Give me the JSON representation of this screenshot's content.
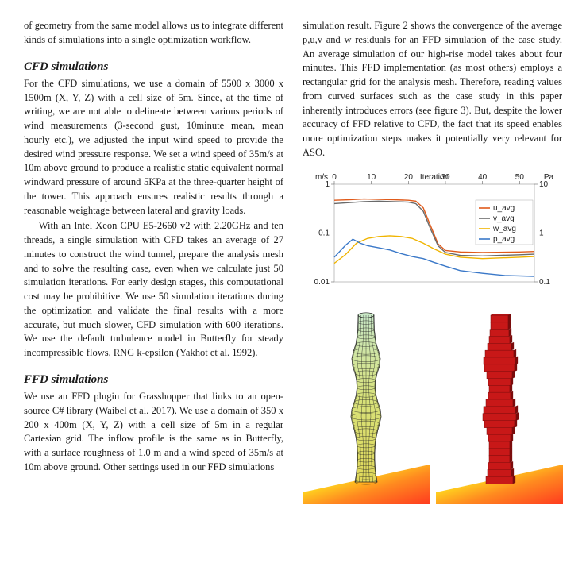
{
  "leftCol": {
    "intro": "of geometry from the same model allows us to integrate different kinds of simulations into a single optimization workflow.",
    "h_cfd": "CFD simulations",
    "cfd_p1": "For the CFD simulations, we use a domain of 5500 x 3000 x 1500m (X, Y, Z) with a cell size of 5m. Since, at the time of writing, we are not able to delineate between various periods of wind measurements (3-second gust, 10minute mean, mean hourly etc.), we adjusted the input wind speed to provide the desired wind pressure response. We set a wind speed of 35m/s at 10m above ground to produce a realistic static equivalent normal windward pressure of around 5KPa at the three-quarter height of the tower.  This approach ensures realistic results through a reasonable weightage between lateral and gravity loads.",
    "cfd_p2": "With an Intel Xeon CPU E5-2660 v2 with 2.20GHz and ten threads, a single simulation with CFD takes an average of 27 minutes to construct the wind tunnel, prepare the analysis mesh and to solve the resulting case, even when we calculate just 50 simulation iterations. For early design stages, this computational cost may be prohibitive. We use 50 simulation iterations during the optimization and validate the final results with a more accurate, but much slower, CFD simulation with 600 iterations. We use the default turbulence model in Butterfly for steady incompressible flows, RNG k-epsilon (Yakhot et al. 1992).",
    "h_ffd": "FFD simulations",
    "ffd_p1": "We use an FFD plugin for Grasshopper that links to an open-source C# library (Waibel et al. 2017). We use a domain of 350 x 200 x 400m (X, Y, Z) with a cell size of 5m in a regular Cartesian grid. The inflow profile is the same as in Butterfly, with a surface roughness of 1.0 m and a wind speed of 35m/s at 10m above ground.  Other settings used in our FFD simulations"
  },
  "rightCol": {
    "p1": "simulation result. Figure 2 shows the convergence of the average p,u,v and w residuals for an FFD simulation of the case study. An average simulation of our high-rise model takes about four minutes. This FFD implementation (as most others) employs a rectangular grid for the analysis mesh. Therefore, reading values from curved surfaces such as the case study in this paper inherently introduces errors (see figure 3). But, despite the lower accuracy of FFD relative to CFD, the fact that its speed enables more optimization steps makes it potentially very relevant for ASO."
  },
  "chart": {
    "type": "line",
    "xlabel": "Iteration",
    "ylabel_left": "m/s",
    "ylabel_right": "Pa",
    "xticks": [
      0,
      10,
      20,
      30,
      40,
      50
    ],
    "yticks_left": [
      0.01,
      0.1,
      1
    ],
    "yticks_right": [
      0.1,
      1,
      10
    ],
    "yaxis": "log",
    "legend": [
      "u_avg",
      "v_avg",
      "w_avg",
      "p_avg"
    ],
    "series_colors": {
      "u_avg": "#e05a1a",
      "v_avg": "#6a6a6a",
      "w_avg": "#f0b400",
      "p_avg": "#3a78c8"
    },
    "series": {
      "u_avg": [
        [
          0,
          0.47
        ],
        [
          4,
          0.48
        ],
        [
          8,
          0.5
        ],
        [
          12,
          0.49
        ],
        [
          16,
          0.48
        ],
        [
          20,
          0.47
        ],
        [
          22,
          0.45
        ],
        [
          24,
          0.33
        ],
        [
          26,
          0.14
        ],
        [
          28,
          0.06
        ],
        [
          30,
          0.044
        ],
        [
          34,
          0.041
        ],
        [
          40,
          0.04
        ],
        [
          50,
          0.041
        ],
        [
          54,
          0.042
        ]
      ],
      "v_avg": [
        [
          0,
          0.4
        ],
        [
          4,
          0.42
        ],
        [
          8,
          0.44
        ],
        [
          12,
          0.45
        ],
        [
          16,
          0.44
        ],
        [
          20,
          0.43
        ],
        [
          22,
          0.4
        ],
        [
          24,
          0.28
        ],
        [
          26,
          0.12
        ],
        [
          28,
          0.055
        ],
        [
          30,
          0.04
        ],
        [
          34,
          0.035
        ],
        [
          40,
          0.034
        ],
        [
          50,
          0.036
        ],
        [
          54,
          0.037
        ]
      ],
      "w_avg": [
        [
          0,
          0.024
        ],
        [
          3,
          0.036
        ],
        [
          6,
          0.062
        ],
        [
          9,
          0.078
        ],
        [
          12,
          0.085
        ],
        [
          15,
          0.088
        ],
        [
          18,
          0.085
        ],
        [
          21,
          0.078
        ],
        [
          24,
          0.062
        ],
        [
          27,
          0.047
        ],
        [
          30,
          0.037
        ],
        [
          34,
          0.032
        ],
        [
          40,
          0.03
        ],
        [
          50,
          0.032
        ],
        [
          54,
          0.033
        ]
      ],
      "p_avg": [
        [
          0,
          0.032
        ],
        [
          3,
          0.056
        ],
        [
          5,
          0.075
        ],
        [
          7,
          0.062
        ],
        [
          9,
          0.055
        ],
        [
          12,
          0.05
        ],
        [
          15,
          0.045
        ],
        [
          18,
          0.038
        ],
        [
          21,
          0.033
        ],
        [
          24,
          0.03
        ],
        [
          27,
          0.025
        ],
        [
          30,
          0.021
        ],
        [
          34,
          0.017
        ],
        [
          40,
          0.015
        ],
        [
          46,
          0.0135
        ],
        [
          54,
          0.013
        ]
      ]
    },
    "background": "#ffffff",
    "label_fontsize": 10
  },
  "towers": {
    "smooth": {
      "fill_top": "#c9e8c6",
      "fill_mid": "#d8e27a",
      "fill_bot": "#e0d85a",
      "mesh_color": "#222222"
    },
    "voxel": {
      "fill": "#c81818",
      "edge": "#7a0c0c"
    },
    "ground": {
      "c1": "#ff3b1f",
      "c2": "#ff8a1f",
      "c3": "#ffd11f",
      "c4": "#2fa0ff"
    }
  }
}
